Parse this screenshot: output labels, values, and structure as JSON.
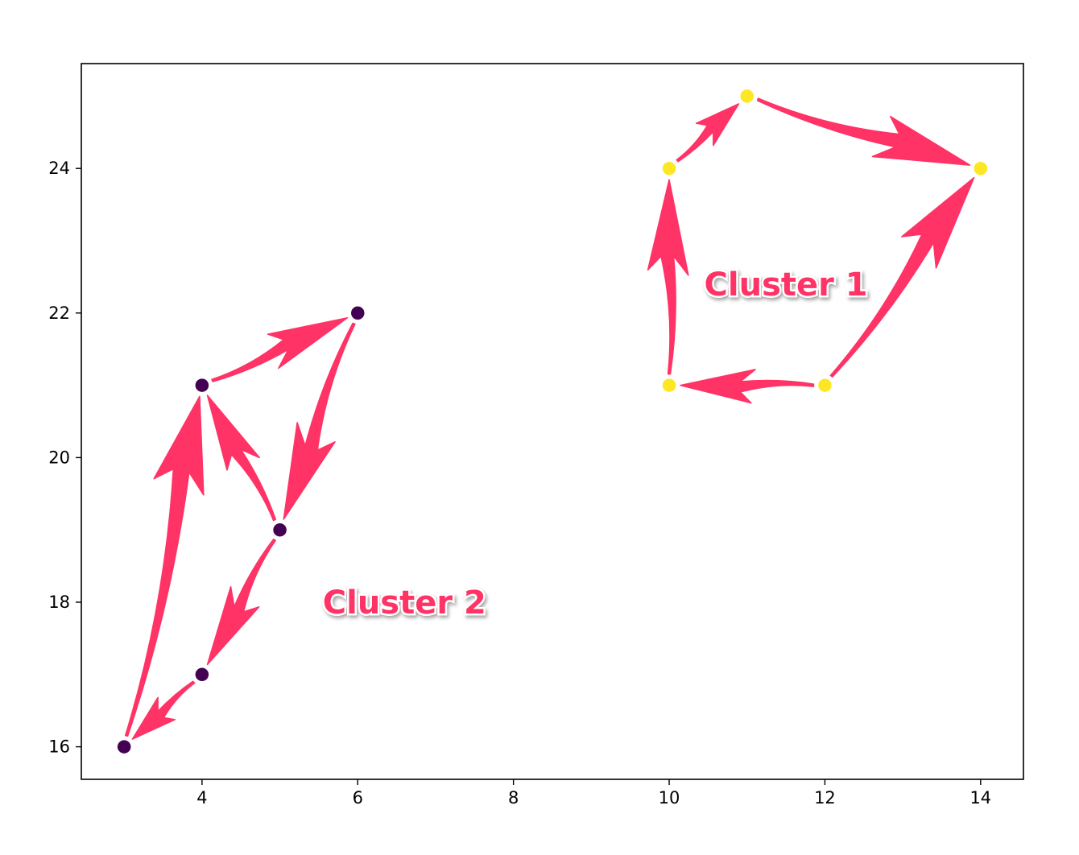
{
  "chart_data": {
    "type": "scatter",
    "title": "",
    "xlabel": "",
    "ylabel": "",
    "xlim": [
      2.45,
      14.55
    ],
    "ylim": [
      15.55,
      25.45
    ],
    "xticks": [
      4,
      6,
      8,
      10,
      12,
      14
    ],
    "yticks": [
      16,
      18,
      20,
      22,
      24
    ],
    "grid": false,
    "legend": "none",
    "colors": {
      "cluster1": "#fde725",
      "cluster2": "#440154",
      "arrow": "#ff3366"
    },
    "series": [
      {
        "cluster": 1,
        "color": "#fde725",
        "points": [
          {
            "x": 10,
            "y": 24
          },
          {
            "x": 11,
            "y": 25
          },
          {
            "x": 14,
            "y": 24
          },
          {
            "x": 12,
            "y": 21
          },
          {
            "x": 10,
            "y": 21
          }
        ]
      },
      {
        "cluster": 2,
        "color": "#440154",
        "points": [
          {
            "x": 3,
            "y": 16
          },
          {
            "x": 4,
            "y": 17
          },
          {
            "x": 4,
            "y": 21
          },
          {
            "x": 5,
            "y": 19
          },
          {
            "x": 6,
            "y": 22
          }
        ]
      }
    ],
    "arrows": [
      {
        "from": [
          10,
          21
        ],
        "to": [
          10,
          24
        ]
      },
      {
        "from": [
          10,
          24
        ],
        "to": [
          11,
          25
        ]
      },
      {
        "from": [
          11,
          25
        ],
        "to": [
          14,
          24
        ]
      },
      {
        "from": [
          12,
          21
        ],
        "to": [
          14,
          24
        ]
      },
      {
        "from": [
          12,
          21
        ],
        "to": [
          10,
          21
        ]
      },
      {
        "from": [
          3,
          16
        ],
        "to": [
          4,
          21
        ]
      },
      {
        "from": [
          4,
          21
        ],
        "to": [
          6,
          22
        ]
      },
      {
        "from": [
          6,
          22
        ],
        "to": [
          5,
          19
        ]
      },
      {
        "from": [
          5,
          19
        ],
        "to": [
          4,
          21
        ]
      },
      {
        "from": [
          5,
          19
        ],
        "to": [
          4,
          17
        ]
      },
      {
        "from": [
          4,
          17
        ],
        "to": [
          3,
          16
        ]
      }
    ],
    "annotations": [
      {
        "text": "Cluster 1",
        "x": 10.45,
        "y": 22.4
      },
      {
        "text": "Cluster 2",
        "x": 5.55,
        "y": 18.0
      }
    ]
  }
}
